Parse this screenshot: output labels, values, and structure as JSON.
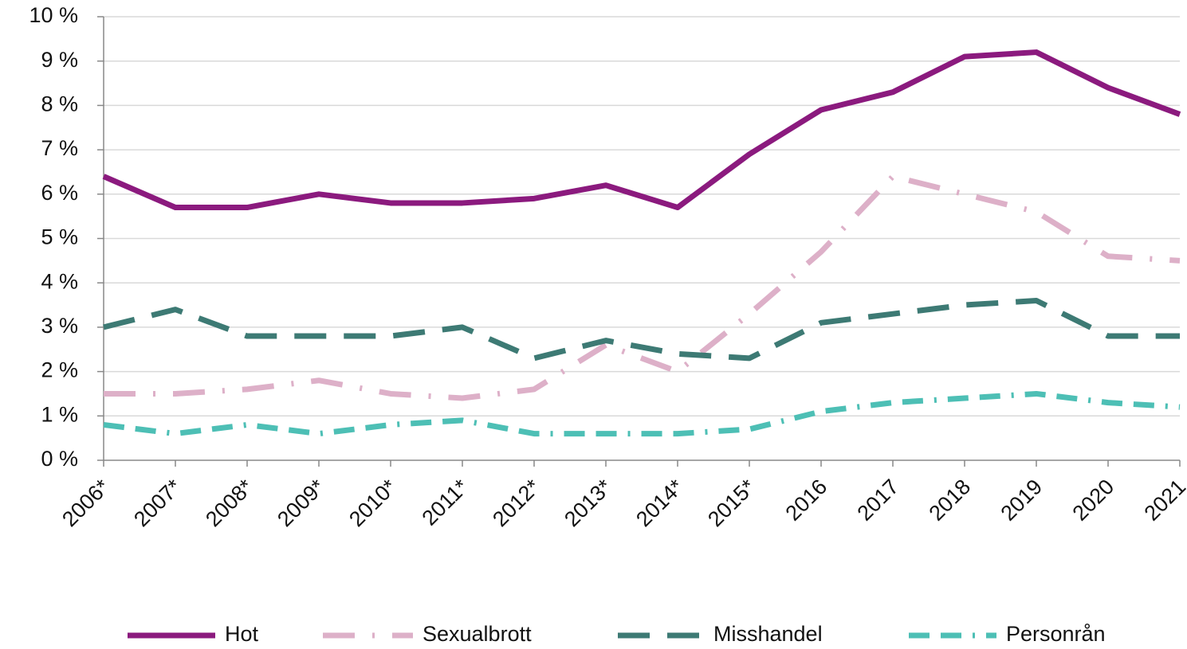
{
  "chart_data": {
    "type": "line",
    "categories": [
      "2006*",
      "2007*",
      "2008*",
      "2009*",
      "2010*",
      "2011*",
      "2012*",
      "2013*",
      "2014*",
      "2015*",
      "2016",
      "2017",
      "2018",
      "2019",
      "2020",
      "2021"
    ],
    "series": [
      {
        "name": "Hot",
        "color": "#8b1a7e",
        "line_style": "solid",
        "values": [
          6.4,
          5.7,
          5.7,
          6.0,
          5.8,
          5.8,
          5.9,
          6.2,
          5.7,
          6.9,
          7.9,
          8.3,
          9.1,
          9.2,
          8.4,
          7.8
        ]
      },
      {
        "name": "Sexualbrott",
        "color": "#ddb0c8",
        "line_style": "long-dash-dot",
        "values": [
          1.5,
          1.5,
          1.6,
          1.8,
          1.5,
          1.4,
          1.6,
          2.6,
          2.0,
          3.3,
          4.7,
          6.4,
          6.0,
          5.6,
          4.6,
          4.5
        ]
      },
      {
        "name": "Misshandel",
        "color": "#3d7a74",
        "line_style": "long-dash",
        "values": [
          3.0,
          3.4,
          2.8,
          2.8,
          2.8,
          3.0,
          2.3,
          2.7,
          2.4,
          2.3,
          3.1,
          3.3,
          3.5,
          3.6,
          2.8,
          2.8
        ]
      },
      {
        "name": "Personrån",
        "color": "#4dbfb5",
        "line_style": "dash-dash-dot",
        "values": [
          0.8,
          0.6,
          0.8,
          0.6,
          0.8,
          0.9,
          0.6,
          0.6,
          0.6,
          0.7,
          1.1,
          1.3,
          1.4,
          1.5,
          1.3,
          1.2
        ]
      }
    ],
    "ylim": [
      0,
      10
    ],
    "yticks": [
      {
        "value": 0,
        "label": "0 %"
      },
      {
        "value": 1,
        "label": "1 %"
      },
      {
        "value": 2,
        "label": "2 %"
      },
      {
        "value": 3,
        "label": "3 %"
      },
      {
        "value": 4,
        "label": "4 %"
      },
      {
        "value": 5,
        "label": "5 %"
      },
      {
        "value": 6,
        "label": "6 %"
      },
      {
        "value": 7,
        "label": "7 %"
      },
      {
        "value": 8,
        "label": "8 %"
      },
      {
        "value": 9,
        "label": "9 %"
      },
      {
        "value": 10,
        "label": "10 %"
      }
    ],
    "grid": true,
    "legend": "bottom"
  }
}
